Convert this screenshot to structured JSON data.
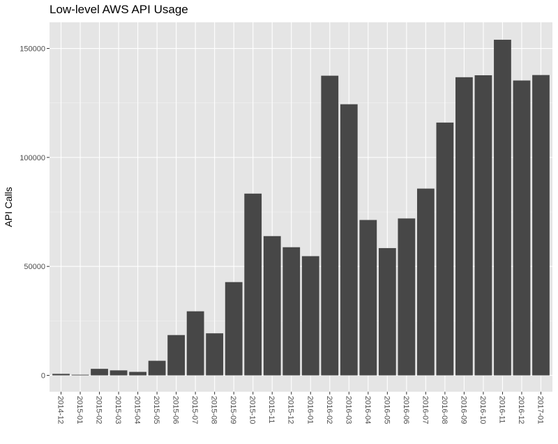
{
  "chart_data": {
    "type": "bar",
    "title": "Low-level AWS API Usage",
    "xlabel": "",
    "ylabel": "API Calls",
    "categories": [
      "2014-12",
      "2015-01",
      "2015-02",
      "2015-03",
      "2015-04",
      "2015-05",
      "2015-06",
      "2015-07",
      "2015-08",
      "2015-09",
      "2015-10",
      "2015-11",
      "2015-12",
      "2016-01",
      "2016-02",
      "2016-03",
      "2016-04",
      "2016-05",
      "2016-06",
      "2016-07",
      "2016-08",
      "2016-09",
      "2016-10",
      "2016-11",
      "2016-12",
      "2017-01"
    ],
    "values": [
      700,
      300,
      3000,
      2300,
      1600,
      6700,
      18500,
      29400,
      19300,
      42800,
      83400,
      63900,
      58800,
      54700,
      137500,
      124400,
      71300,
      58400,
      72000,
      85700,
      116000,
      136800,
      137700,
      154000,
      135300,
      137800
    ],
    "ylim": [
      -7500,
      162000
    ],
    "yticks": [
      0,
      50000,
      100000,
      150000
    ],
    "ytick_labels": [
      "0",
      "50000",
      "100000",
      "150000"
    ],
    "grid": true,
    "colors": {
      "bar": "#474747",
      "panel": "#e5e5e5",
      "grid_major": "#ffffff",
      "grid_minor": "#f2f2f2",
      "tick": "#333333"
    }
  }
}
